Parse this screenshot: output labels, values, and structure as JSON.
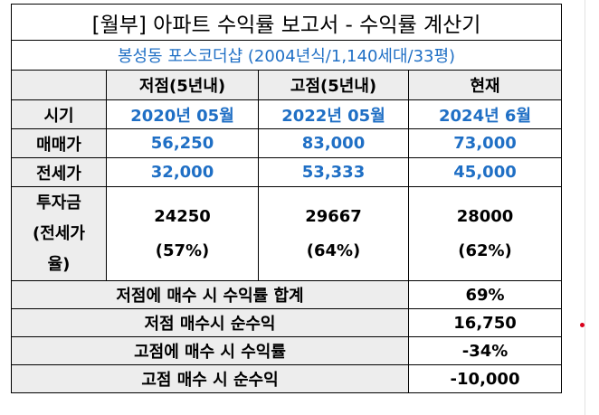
{
  "report": {
    "title": "[월부] 아파트 수익률 보고서 - 수익률 계산기",
    "subtitle": "봉성동 포스코더샵 (2004년식/1,140세대/33평)",
    "columns": [
      "저점(5년내)",
      "고점(5년내)",
      "현재"
    ],
    "rows": {
      "period": {
        "label": "시기",
        "values": [
          "2020년 05월",
          "2022년 05월",
          "2024년 6월"
        ]
      },
      "sale": {
        "label": "매매가",
        "values": [
          "56,250",
          "83,000",
          "73,000"
        ]
      },
      "jeonse": {
        "label": "전세가",
        "values": [
          "32,000",
          "53,333",
          "45,000"
        ]
      },
      "investment": {
        "label_lines": [
          "투자금",
          "(전세가",
          "율)"
        ],
        "amounts": [
          "24250",
          "29667",
          "28000"
        ],
        "ratios": [
          "(57%)",
          "(64%)",
          "(62%)"
        ]
      }
    },
    "summary": [
      {
        "label": "저점에 매수 시 수익률 합계",
        "value": "69%"
      },
      {
        "label": "저점 매수시 순수익",
        "value": "16,750"
      },
      {
        "label": "고점에 매수 시 수익률",
        "value": "-34%"
      },
      {
        "label": "고점 매수 시 순수익",
        "value": "-10,000"
      }
    ],
    "colors": {
      "accent_blue": "#1f6fc5",
      "header_gray": "#ededed",
      "marker_red": "#d9001b"
    }
  }
}
